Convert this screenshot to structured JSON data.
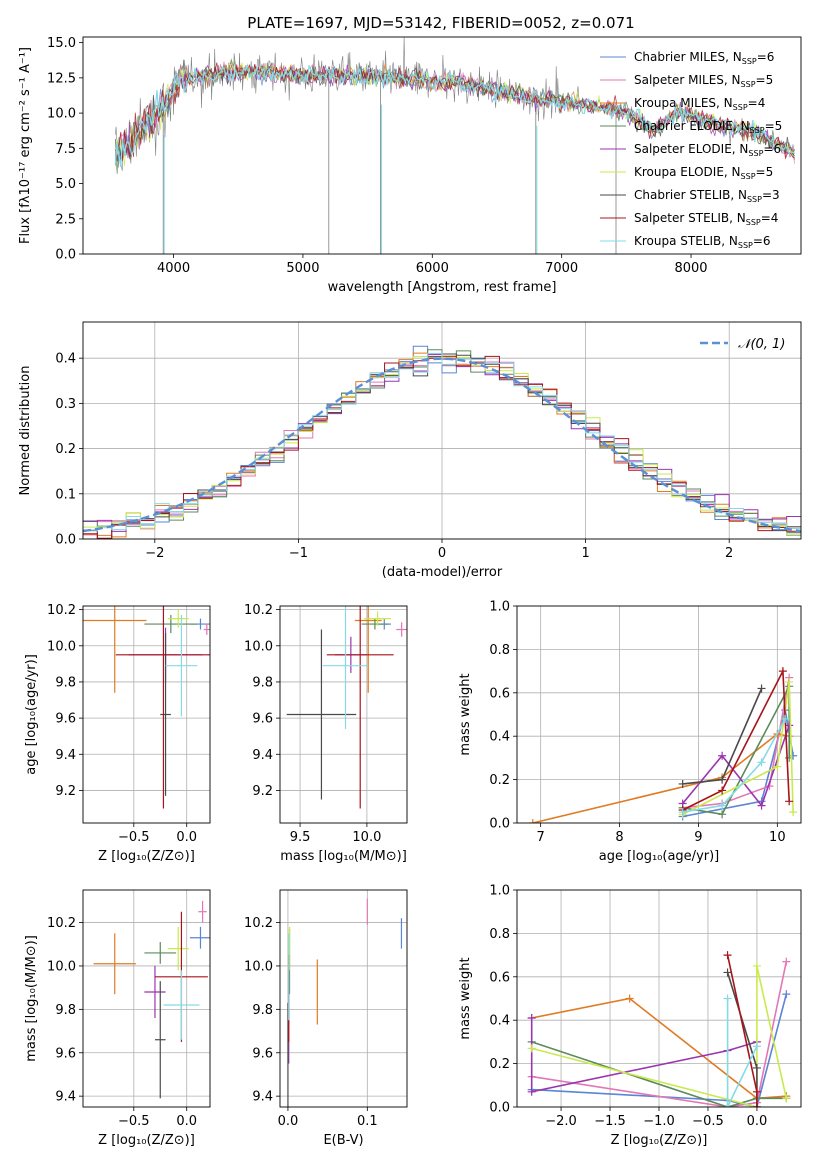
{
  "figure_title": "PLATE=1697, MJD=53142, FIBERID=0052, z=0.071",
  "colors": {
    "Chabrier MILES": "#5b84d4",
    "Salpeter MILES": "#e377b6",
    "Kroupa MILES": "#e07b22",
    "Chabrier ELODIE": "#5b8a5b",
    "Salpeter ELODIE": "#9a35b0",
    "Kroupa ELODIE": "#c9ea4c",
    "Chabrier STELIB": "#4a4a4a",
    "Salpeter STELIB": "#a8141c",
    "Kroupa STELIB": "#84dbe6",
    "data": "#808080",
    "normal": "#5b8fd6"
  },
  "chart_data": [
    {
      "id": "spectrum",
      "type": "line",
      "title": "PLATE=1697, MJD=53142, FIBERID=0052, z=0.071",
      "xlabel": "wavelength [Angstrom, rest frame]",
      "ylabel": "Flux [fλ10⁻¹⁷ erg cm⁻² s⁻¹ A⁻¹]",
      "xlim": [
        3300,
        8850
      ],
      "ylim": [
        0,
        15.4
      ],
      "xticks": [
        4000,
        5000,
        6000,
        7000,
        8000
      ],
      "yticks": [
        0.0,
        2.5,
        5.0,
        7.5,
        10.0,
        12.5,
        15.0
      ],
      "legend_position": "right",
      "series": [
        {
          "name": "Chabrier MILES, N_SSP=6",
          "label_main": "Chabrier MILES, N",
          "label_sub": "SSP",
          "label_end": "=6"
        },
        {
          "name": "Salpeter MILES, N_SSP=5",
          "label_main": "Salpeter MILES, N",
          "label_sub": "SSP",
          "label_end": "=5"
        },
        {
          "name": "Kroupa MILES, N_SSP=4",
          "label_main": "Kroupa MILES, N",
          "label_sub": "SSP",
          "label_end": "=4"
        },
        {
          "name": "Chabrier ELODIE, N_SSP=5",
          "label_main": "Chabrier ELODIE, N",
          "label_sub": "SSP",
          "label_end": "=5"
        },
        {
          "name": "Salpeter ELODIE, N_SSP=6",
          "label_main": "Salpeter ELODIE, N",
          "label_sub": "SSP",
          "label_end": "=6"
        },
        {
          "name": "Kroupa ELODIE, N_SSP=5",
          "label_main": "Kroupa ELODIE, N",
          "label_sub": "SSP",
          "label_end": "=5"
        },
        {
          "name": "Chabrier STELIB, N_SSP=3",
          "label_main": "Chabrier STELIB, N",
          "label_sub": "SSP",
          "label_end": "=3"
        },
        {
          "name": "Salpeter STELIB, N_SSP=4",
          "label_main": "Salpeter STELIB, N",
          "label_sub": "SSP",
          "label_end": "=4"
        },
        {
          "name": "Kroupa STELIB, N_SSP=6",
          "label_main": "Kroupa STELIB, N",
          "label_sub": "SSP",
          "label_end": "=6"
        }
      ],
      "continuum": [
        [
          3550,
          7.0
        ],
        [
          3650,
          7.8
        ],
        [
          3750,
          8.8
        ],
        [
          3850,
          9.6
        ],
        [
          3950,
          10.8
        ],
        [
          4050,
          12.3
        ],
        [
          4200,
          12.6
        ],
        [
          4400,
          12.9
        ],
        [
          4700,
          12.9
        ],
        [
          5000,
          12.7
        ],
        [
          5300,
          12.7
        ],
        [
          5600,
          12.6
        ],
        [
          5900,
          12.3
        ],
        [
          6200,
          12.2
        ],
        [
          6500,
          11.6
        ],
        [
          6800,
          11.1
        ],
        [
          7100,
          10.7
        ],
        [
          7400,
          10.3
        ],
        [
          7600,
          9.6
        ],
        [
          7700,
          8.6
        ],
        [
          7900,
          10.1
        ],
        [
          8200,
          9.2
        ],
        [
          8500,
          8.6
        ],
        [
          8700,
          7.7
        ],
        [
          8800,
          7.1
        ]
      ],
      "sharp_dips": [
        3920,
        5200,
        5600,
        6800,
        7420
      ]
    },
    {
      "id": "residuals",
      "type": "histogram",
      "xlabel": "(data-model)/error",
      "ylabel": "Normed distribution",
      "xlim": [
        -2.5,
        2.5
      ],
      "ylim": [
        0,
        0.48
      ],
      "xticks": [
        -2,
        -1,
        0,
        1,
        2
      ],
      "yticks": [
        0.0,
        0.1,
        0.2,
        0.3,
        0.4
      ],
      "bin_width": 0.1,
      "legend": "𝒩(0, 1)",
      "normal_curve": {
        "mean": 0,
        "sigma": 1
      }
    },
    {
      "id": "age_vs_Z",
      "type": "scatter",
      "xlabel": "Z [log₁₀(Z/Z⊙)]",
      "ylabel": "age  [log₁₀(age/yr)]",
      "xlim": [
        -0.98,
        0.22
      ],
      "ylim": [
        9.02,
        10.22
      ],
      "xticks": [
        -0.5,
        0.0
      ],
      "yticks": [
        9.2,
        9.4,
        9.6,
        9.8,
        10.0,
        10.2
      ],
      "points": [
        {
          "x": 0.13,
          "y": 10.12,
          "xerr": 0.1,
          "yerr": 0.03
        },
        {
          "x": 0.19,
          "y": 10.09,
          "xerr": 0.03,
          "yerr": 0.03
        },
        {
          "x": -0.68,
          "y": 10.14,
          "xerr": 0.3,
          "yerr": 0.4
        },
        {
          "x": -0.15,
          "y": 10.12,
          "xerr": 0.25,
          "yerr": 0.05
        },
        {
          "x": -0.2,
          "y": 9.95,
          "xerr": 0.35,
          "yerr": 0.15
        },
        {
          "x": -0.08,
          "y": 10.15,
          "xerr": 0.1,
          "yerr": 0.05
        },
        {
          "x": -0.2,
          "y": 9.62,
          "xerr": 0.05,
          "yerr": 0.45
        },
        {
          "x": -0.22,
          "y": 9.95,
          "xerr": 0.45,
          "yerr": 0.85
        },
        {
          "x": -0.05,
          "y": 9.89,
          "xerr": 0.15,
          "yerr": 0.28
        }
      ]
    },
    {
      "id": "age_vs_mass",
      "type": "scatter",
      "xlabel": "mass [log₁₀(M/M⊙)]",
      "ylabel": "",
      "xlim": [
        9.35,
        10.3
      ],
      "ylim": [
        9.02,
        10.22
      ],
      "xticks": [
        9.5,
        10.0
      ],
      "yticks": [
        9.2,
        9.4,
        9.6,
        9.8,
        10.0,
        10.2
      ],
      "points": [
        {
          "x": 10.13,
          "y": 10.12,
          "xerr": 0.05,
          "yerr": 0.03
        },
        {
          "x": 10.26,
          "y": 10.09,
          "xerr": 0.04,
          "yerr": 0.04
        },
        {
          "x": 10.01,
          "y": 10.14,
          "xerr": 0.1,
          "yerr": 0.4
        },
        {
          "x": 10.06,
          "y": 10.12,
          "xerr": 0.1,
          "yerr": 0.03
        },
        {
          "x": 9.88,
          "y": 9.95,
          "xerr": 0.12,
          "yerr": 0.1
        },
        {
          "x": 10.08,
          "y": 10.15,
          "xerr": 0.1,
          "yerr": 0.04
        },
        {
          "x": 9.66,
          "y": 9.62,
          "xerr": 0.26,
          "yerr": 0.47
        },
        {
          "x": 9.95,
          "y": 9.95,
          "xerr": 0.25,
          "yerr": 0.85
        },
        {
          "x": 9.84,
          "y": 9.89,
          "xerr": 0.17,
          "yerr": 0.35
        }
      ]
    },
    {
      "id": "weight_vs_age",
      "type": "line",
      "xlabel": "age  [log₁₀(age/yr)]",
      "ylabel": "mass weight",
      "xlim": [
        6.7,
        10.3
      ],
      "ylim": [
        0,
        1
      ],
      "xticks": [
        7,
        8,
        9,
        10
      ],
      "yticks": [
        0.0,
        0.2,
        0.4,
        0.6,
        0.8,
        1.0
      ],
      "series": [
        [
          [
            8.8,
            0.03
          ],
          [
            9.8,
            0.1
          ],
          [
            10.1,
            0.52
          ],
          [
            10.2,
            0.31
          ]
        ],
        [
          [
            8.8,
            0.07
          ],
          [
            9.3,
            0.09
          ],
          [
            9.9,
            0.17
          ],
          [
            10.15,
            0.67
          ]
        ],
        [
          [
            6.9,
            0.0
          ],
          [
            9.3,
            0.21
          ],
          [
            10.0,
            0.41
          ],
          [
            10.15,
            0.4
          ]
        ],
        [
          [
            8.8,
            0.07
          ],
          [
            9.3,
            0.04
          ],
          [
            10.15,
            0.63
          ],
          [
            10.15,
            0.3
          ]
        ],
        [
          [
            8.8,
            0.09
          ],
          [
            9.3,
            0.31
          ],
          [
            9.8,
            0.08
          ],
          [
            10.15,
            0.45
          ]
        ],
        [
          [
            8.8,
            0.04
          ],
          [
            10.0,
            0.26
          ],
          [
            10.15,
            0.65
          ],
          [
            10.2,
            0.05
          ]
        ],
        [
          [
            8.8,
            0.18
          ],
          [
            9.3,
            0.2
          ],
          [
            9.8,
            0.62
          ]
        ],
        [
          [
            8.8,
            0.06
          ],
          [
            9.3,
            0.15
          ],
          [
            10.07,
            0.7
          ],
          [
            10.15,
            0.1
          ]
        ],
        [
          [
            8.8,
            0.05
          ],
          [
            9.3,
            0.08
          ],
          [
            9.8,
            0.28
          ],
          [
            10.1,
            0.48
          ]
        ]
      ]
    },
    {
      "id": "mass_vs_Z",
      "type": "scatter",
      "xlabel": "Z [log₁₀(Z/Z⊙)]",
      "ylabel": "mass [log₁₀(M/M⊙)]",
      "xlim": [
        -0.98,
        0.22
      ],
      "ylim": [
        9.35,
        10.35
      ],
      "xticks": [
        -0.5,
        0.0
      ],
      "yticks": [
        9.4,
        9.6,
        9.8,
        10.0,
        10.2
      ],
      "points": [
        {
          "x": 0.13,
          "y": 10.13,
          "xerr": 0.1,
          "yerr": 0.05
        },
        {
          "x": 0.15,
          "y": 10.25,
          "xerr": 0.04,
          "yerr": 0.05
        },
        {
          "x": -0.68,
          "y": 10.01,
          "xerr": 0.2,
          "yerr": 0.14
        },
        {
          "x": -0.25,
          "y": 10.06,
          "xerr": 0.15,
          "yerr": 0.05
        },
        {
          "x": -0.3,
          "y": 9.88,
          "xerr": 0.1,
          "yerr": 0.12
        },
        {
          "x": -0.08,
          "y": 10.08,
          "xerr": 0.1,
          "yerr": 0.1
        },
        {
          "x": -0.25,
          "y": 9.66,
          "xerr": 0.05,
          "yerr": 0.27
        },
        {
          "x": -0.05,
          "y": 9.95,
          "xerr": 0.25,
          "yerr": 0.3
        },
        {
          "x": -0.05,
          "y": 9.82,
          "xerr": 0.17,
          "yerr": 0.16
        }
      ]
    },
    {
      "id": "mass_vs_ebv",
      "type": "scatter",
      "xlabel": "E(B-V)",
      "ylabel": "",
      "xlim": [
        -0.01,
        0.15
      ],
      "ylim": [
        9.35,
        10.35
      ],
      "xticks": [
        0.0,
        0.1
      ],
      "yticks": [
        9.4,
        9.6,
        9.8,
        10.0,
        10.2
      ],
      "points": [
        {
          "x": 0.143,
          "y": 10.15,
          "xerr": 0.0,
          "yerr": 0.07
        },
        {
          "x": 0.1,
          "y": 10.25,
          "xerr": 0.0,
          "yerr": 0.06
        },
        {
          "x": 0.037,
          "y": 9.88,
          "xerr": 0.0,
          "yerr": 0.15
        },
        {
          "x": 0.002,
          "y": 10.02,
          "xerr": 0.0,
          "yerr": 0.15
        },
        {
          "x": 0.001,
          "y": 9.75,
          "xerr": 0.0,
          "yerr": 0.2
        },
        {
          "x": 0.002,
          "y": 10.08,
          "xerr": 0.0,
          "yerr": 0.1
        },
        {
          "x": 0.0,
          "y": 9.58,
          "xerr": 0.0,
          "yerr": 0.25
        },
        {
          "x": 0.001,
          "y": 9.85,
          "xerr": 0.0,
          "yerr": 0.2
        },
        {
          "x": 0.001,
          "y": 9.95,
          "xerr": 0.0,
          "yerr": 0.2
        }
      ]
    },
    {
      "id": "weight_vs_Z",
      "type": "line",
      "xlabel": "Z [log₁₀(Z/Z⊙)]",
      "ylabel": "mass weight",
      "xlim": [
        -2.45,
        0.45
      ],
      "ylim": [
        0,
        1
      ],
      "xticks": [
        -2.0,
        -1.5,
        -1.0,
        -0.5,
        0.0
      ],
      "yticks": [
        0.0,
        0.2,
        0.4,
        0.6,
        0.8,
        1.0
      ],
      "series": [
        [
          [
            -2.3,
            0.08
          ],
          [
            -0.3,
            0.03
          ],
          [
            0.0,
            0.0
          ],
          [
            0.3,
            0.52
          ]
        ],
        [
          [
            -2.3,
            0.14
          ],
          [
            -0.3,
            0.0
          ],
          [
            0.0,
            0.02
          ],
          [
            0.3,
            0.67
          ]
        ],
        [
          [
            -2.3,
            0.41
          ],
          [
            -1.3,
            0.5
          ],
          [
            0.0,
            0.04
          ],
          [
            0.3,
            0.05
          ]
        ],
        [
          [
            -2.3,
            0.3
          ],
          [
            -0.3,
            0.0
          ],
          [
            0.0,
            0.04
          ],
          [
            0.3,
            0.04
          ]
        ],
        [
          [
            -2.3,
            0.41
          ],
          [
            -2.3,
            0.07
          ],
          [
            -0.3,
            0.26
          ],
          [
            0.0,
            0.3
          ]
        ],
        [
          [
            -2.3,
            0.27
          ],
          [
            0.0,
            0.0
          ],
          [
            0.0,
            0.65
          ],
          [
            0.3,
            0.04
          ]
        ],
        [
          [
            -0.3,
            0.62
          ],
          [
            0.0,
            0.18
          ],
          [
            0.0,
            0.0
          ]
        ],
        [
          [
            -0.3,
            0.7
          ],
          [
            0.0,
            0.07
          ],
          [
            0.0,
            0.0
          ]
        ],
        [
          [
            -0.3,
            0.5
          ],
          [
            -0.3,
            0.0
          ],
          [
            0.0,
            0.28
          ]
        ]
      ]
    }
  ]
}
